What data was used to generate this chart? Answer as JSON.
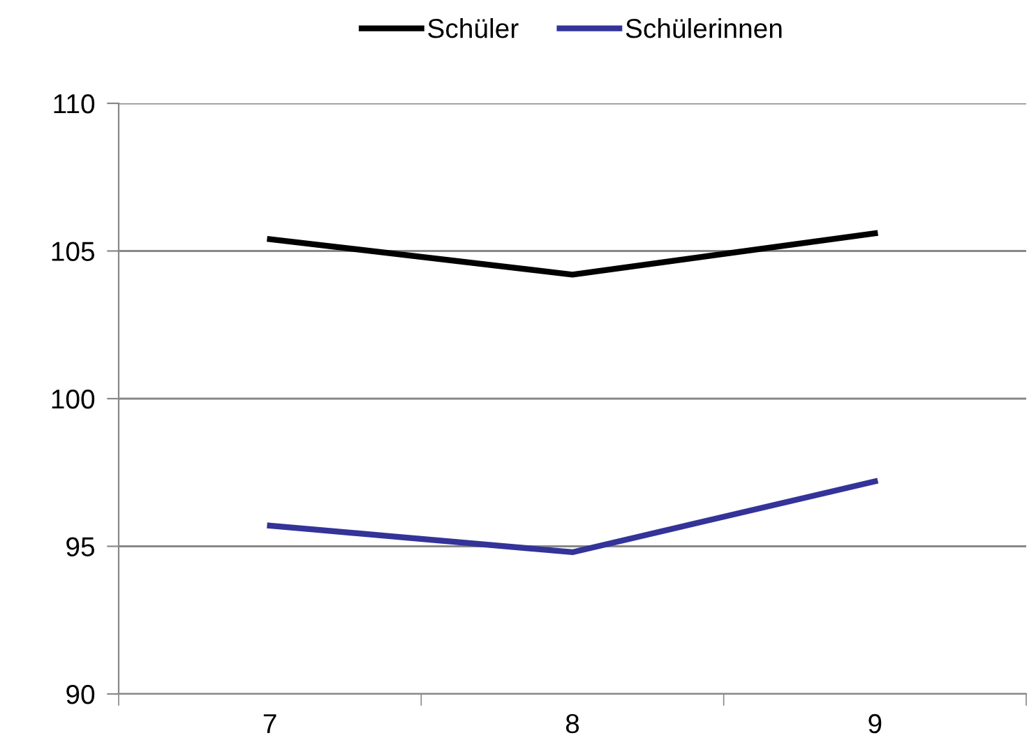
{
  "chart_data": {
    "type": "line",
    "categories": [
      "7",
      "8",
      "9"
    ],
    "series": [
      {
        "name": "Schüler",
        "color": "#000000",
        "values": [
          105.4,
          104.2,
          105.6
        ]
      },
      {
        "name": "Schülerinnen",
        "color": "#333399",
        "values": [
          95.7,
          94.8,
          97.2
        ]
      }
    ],
    "ylim": [
      90,
      110
    ],
    "yticks": [
      90,
      95,
      100,
      105,
      110
    ],
    "grid": "y",
    "legend": "top",
    "marker": "none",
    "line_style": "solid"
  }
}
